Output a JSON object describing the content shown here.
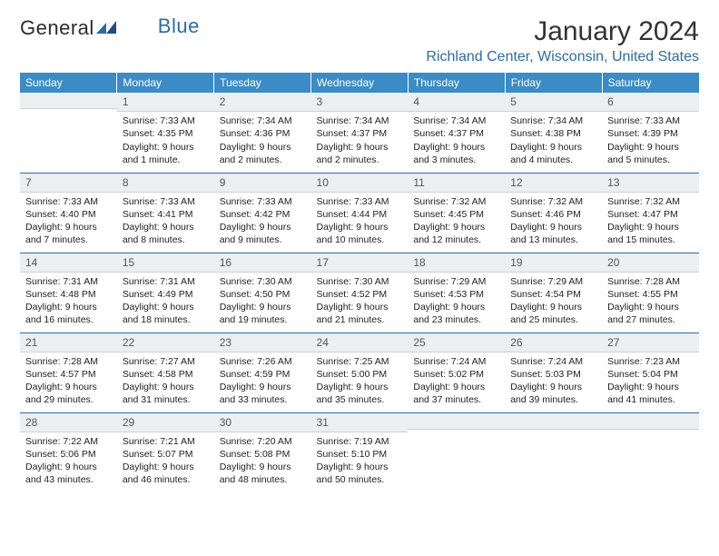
{
  "logo": {
    "part1": "General",
    "part2": "Blue"
  },
  "title": "January 2024",
  "location": "Richland Center, Wisconsin, United States",
  "colors": {
    "header_bg": "#3b8bc6",
    "accent": "#2b6ca3",
    "daynum_bg": "#eceeef",
    "text": "#333333"
  },
  "weekdays": [
    "Sunday",
    "Monday",
    "Tuesday",
    "Wednesday",
    "Thursday",
    "Friday",
    "Saturday"
  ],
  "weeks": [
    [
      {
        "n": "",
        "sunrise": "",
        "sunset": "",
        "daylight": ""
      },
      {
        "n": "1",
        "sunrise": "Sunrise: 7:33 AM",
        "sunset": "Sunset: 4:35 PM",
        "daylight": "Daylight: 9 hours and 1 minute."
      },
      {
        "n": "2",
        "sunrise": "Sunrise: 7:34 AM",
        "sunset": "Sunset: 4:36 PM",
        "daylight": "Daylight: 9 hours and 2 minutes."
      },
      {
        "n": "3",
        "sunrise": "Sunrise: 7:34 AM",
        "sunset": "Sunset: 4:37 PM",
        "daylight": "Daylight: 9 hours and 2 minutes."
      },
      {
        "n": "4",
        "sunrise": "Sunrise: 7:34 AM",
        "sunset": "Sunset: 4:37 PM",
        "daylight": "Daylight: 9 hours and 3 minutes."
      },
      {
        "n": "5",
        "sunrise": "Sunrise: 7:34 AM",
        "sunset": "Sunset: 4:38 PM",
        "daylight": "Daylight: 9 hours and 4 minutes."
      },
      {
        "n": "6",
        "sunrise": "Sunrise: 7:33 AM",
        "sunset": "Sunset: 4:39 PM",
        "daylight": "Daylight: 9 hours and 5 minutes."
      }
    ],
    [
      {
        "n": "7",
        "sunrise": "Sunrise: 7:33 AM",
        "sunset": "Sunset: 4:40 PM",
        "daylight": "Daylight: 9 hours and 7 minutes."
      },
      {
        "n": "8",
        "sunrise": "Sunrise: 7:33 AM",
        "sunset": "Sunset: 4:41 PM",
        "daylight": "Daylight: 9 hours and 8 minutes."
      },
      {
        "n": "9",
        "sunrise": "Sunrise: 7:33 AM",
        "sunset": "Sunset: 4:42 PM",
        "daylight": "Daylight: 9 hours and 9 minutes."
      },
      {
        "n": "10",
        "sunrise": "Sunrise: 7:33 AM",
        "sunset": "Sunset: 4:44 PM",
        "daylight": "Daylight: 9 hours and 10 minutes."
      },
      {
        "n": "11",
        "sunrise": "Sunrise: 7:32 AM",
        "sunset": "Sunset: 4:45 PM",
        "daylight": "Daylight: 9 hours and 12 minutes."
      },
      {
        "n": "12",
        "sunrise": "Sunrise: 7:32 AM",
        "sunset": "Sunset: 4:46 PM",
        "daylight": "Daylight: 9 hours and 13 minutes."
      },
      {
        "n": "13",
        "sunrise": "Sunrise: 7:32 AM",
        "sunset": "Sunset: 4:47 PM",
        "daylight": "Daylight: 9 hours and 15 minutes."
      }
    ],
    [
      {
        "n": "14",
        "sunrise": "Sunrise: 7:31 AM",
        "sunset": "Sunset: 4:48 PM",
        "daylight": "Daylight: 9 hours and 16 minutes."
      },
      {
        "n": "15",
        "sunrise": "Sunrise: 7:31 AM",
        "sunset": "Sunset: 4:49 PM",
        "daylight": "Daylight: 9 hours and 18 minutes."
      },
      {
        "n": "16",
        "sunrise": "Sunrise: 7:30 AM",
        "sunset": "Sunset: 4:50 PM",
        "daylight": "Daylight: 9 hours and 19 minutes."
      },
      {
        "n": "17",
        "sunrise": "Sunrise: 7:30 AM",
        "sunset": "Sunset: 4:52 PM",
        "daylight": "Daylight: 9 hours and 21 minutes."
      },
      {
        "n": "18",
        "sunrise": "Sunrise: 7:29 AM",
        "sunset": "Sunset: 4:53 PM",
        "daylight": "Daylight: 9 hours and 23 minutes."
      },
      {
        "n": "19",
        "sunrise": "Sunrise: 7:29 AM",
        "sunset": "Sunset: 4:54 PM",
        "daylight": "Daylight: 9 hours and 25 minutes."
      },
      {
        "n": "20",
        "sunrise": "Sunrise: 7:28 AM",
        "sunset": "Sunset: 4:55 PM",
        "daylight": "Daylight: 9 hours and 27 minutes."
      }
    ],
    [
      {
        "n": "21",
        "sunrise": "Sunrise: 7:28 AM",
        "sunset": "Sunset: 4:57 PM",
        "daylight": "Daylight: 9 hours and 29 minutes."
      },
      {
        "n": "22",
        "sunrise": "Sunrise: 7:27 AM",
        "sunset": "Sunset: 4:58 PM",
        "daylight": "Daylight: 9 hours and 31 minutes."
      },
      {
        "n": "23",
        "sunrise": "Sunrise: 7:26 AM",
        "sunset": "Sunset: 4:59 PM",
        "daylight": "Daylight: 9 hours and 33 minutes."
      },
      {
        "n": "24",
        "sunrise": "Sunrise: 7:25 AM",
        "sunset": "Sunset: 5:00 PM",
        "daylight": "Daylight: 9 hours and 35 minutes."
      },
      {
        "n": "25",
        "sunrise": "Sunrise: 7:24 AM",
        "sunset": "Sunset: 5:02 PM",
        "daylight": "Daylight: 9 hours and 37 minutes."
      },
      {
        "n": "26",
        "sunrise": "Sunrise: 7:24 AM",
        "sunset": "Sunset: 5:03 PM",
        "daylight": "Daylight: 9 hours and 39 minutes."
      },
      {
        "n": "27",
        "sunrise": "Sunrise: 7:23 AM",
        "sunset": "Sunset: 5:04 PM",
        "daylight": "Daylight: 9 hours and 41 minutes."
      }
    ],
    [
      {
        "n": "28",
        "sunrise": "Sunrise: 7:22 AM",
        "sunset": "Sunset: 5:06 PM",
        "daylight": "Daylight: 9 hours and 43 minutes."
      },
      {
        "n": "29",
        "sunrise": "Sunrise: 7:21 AM",
        "sunset": "Sunset: 5:07 PM",
        "daylight": "Daylight: 9 hours and 46 minutes."
      },
      {
        "n": "30",
        "sunrise": "Sunrise: 7:20 AM",
        "sunset": "Sunset: 5:08 PM",
        "daylight": "Daylight: 9 hours and 48 minutes."
      },
      {
        "n": "31",
        "sunrise": "Sunrise: 7:19 AM",
        "sunset": "Sunset: 5:10 PM",
        "daylight": "Daylight: 9 hours and 50 minutes."
      },
      {
        "n": "",
        "sunrise": "",
        "sunset": "",
        "daylight": ""
      },
      {
        "n": "",
        "sunrise": "",
        "sunset": "",
        "daylight": ""
      },
      {
        "n": "",
        "sunrise": "",
        "sunset": "",
        "daylight": ""
      }
    ]
  ]
}
